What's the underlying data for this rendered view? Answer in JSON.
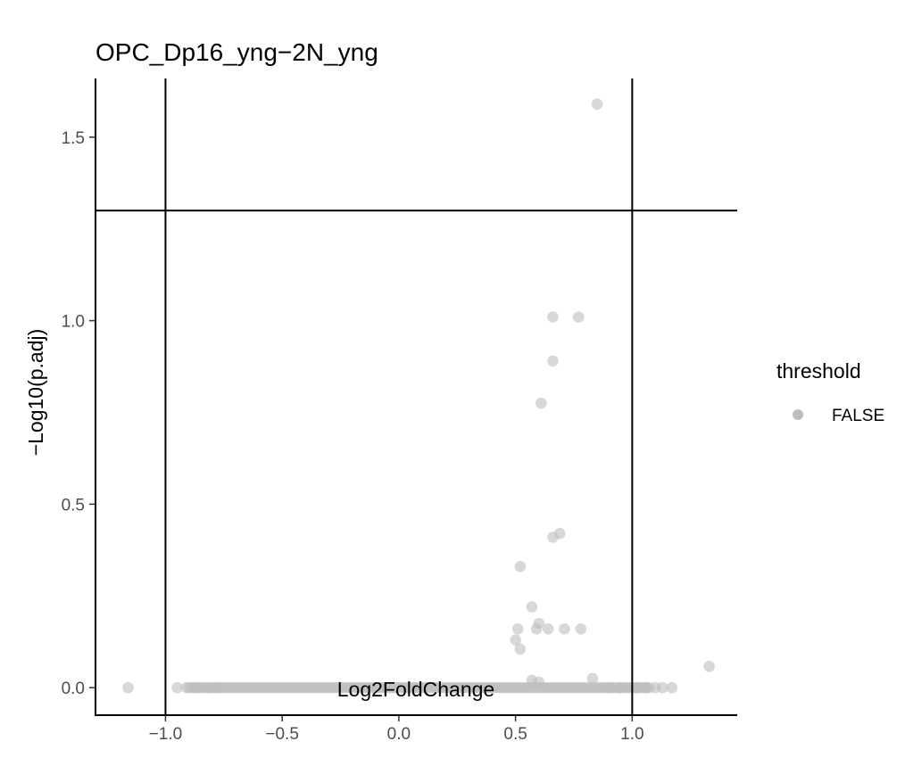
{
  "chart_data": {
    "type": "scatter",
    "title": "OPC_Dp16_yng−2N_yng",
    "xlabel": "Log2FoldChange",
    "ylabel": "−Log10(p.adj)",
    "xlim": [
      -1.3,
      1.45
    ],
    "ylim": [
      -0.075,
      1.66
    ],
    "x_ticks": [
      -1.0,
      -0.5,
      0.0,
      0.5,
      1.0
    ],
    "x_tick_labels": [
      "−1.0",
      "−0.5",
      "0.0",
      "0.5",
      "1.0"
    ],
    "y_ticks": [
      0.0,
      0.5,
      1.0,
      1.5
    ],
    "y_tick_labels": [
      "0.0",
      "0.5",
      "1.0",
      "1.5"
    ],
    "vlines": [
      -1.0,
      1.0
    ],
    "hline": 1.3,
    "grid": false,
    "legend": {
      "title": "threshold",
      "position": "right",
      "entries": [
        "FALSE"
      ]
    },
    "point_color": "#bebebe",
    "series": [
      {
        "name": "FALSE",
        "points": [
          [
            0.85,
            1.59
          ],
          [
            0.66,
            1.01
          ],
          [
            0.77,
            1.01
          ],
          [
            0.66,
            0.89
          ],
          [
            0.61,
            0.775
          ],
          [
            0.69,
            0.42
          ],
          [
            0.66,
            0.41
          ],
          [
            0.52,
            0.33
          ],
          [
            0.57,
            0.22
          ],
          [
            0.6,
            0.175
          ],
          [
            0.59,
            0.16
          ],
          [
            0.51,
            0.16
          ],
          [
            0.64,
            0.16
          ],
          [
            0.71,
            0.16
          ],
          [
            0.78,
            0.16
          ],
          [
            0.5,
            0.13
          ],
          [
            0.52,
            0.105
          ],
          [
            1.33,
            0.058
          ],
          [
            0.83,
            0.025
          ],
          [
            0.57,
            0.02
          ],
          [
            0.6,
            0.015
          ],
          [
            -1.16,
            0.0
          ],
          [
            -0.95,
            0.0
          ],
          [
            -0.91,
            0.0
          ],
          [
            -0.87,
            0.0
          ],
          [
            -0.82,
            0.0
          ],
          [
            -0.78,
            0.0
          ],
          [
            0.9,
            0.0
          ],
          [
            0.95,
            0.0
          ],
          [
            1.02,
            0.0
          ],
          [
            1.06,
            0.0
          ],
          [
            1.1,
            0.0
          ],
          [
            1.13,
            0.0
          ],
          [
            1.17,
            0.0
          ]
        ],
        "dense_band": {
          "x_range": [
            -0.9,
            1.08
          ],
          "y": 0.0
        }
      }
    ]
  }
}
